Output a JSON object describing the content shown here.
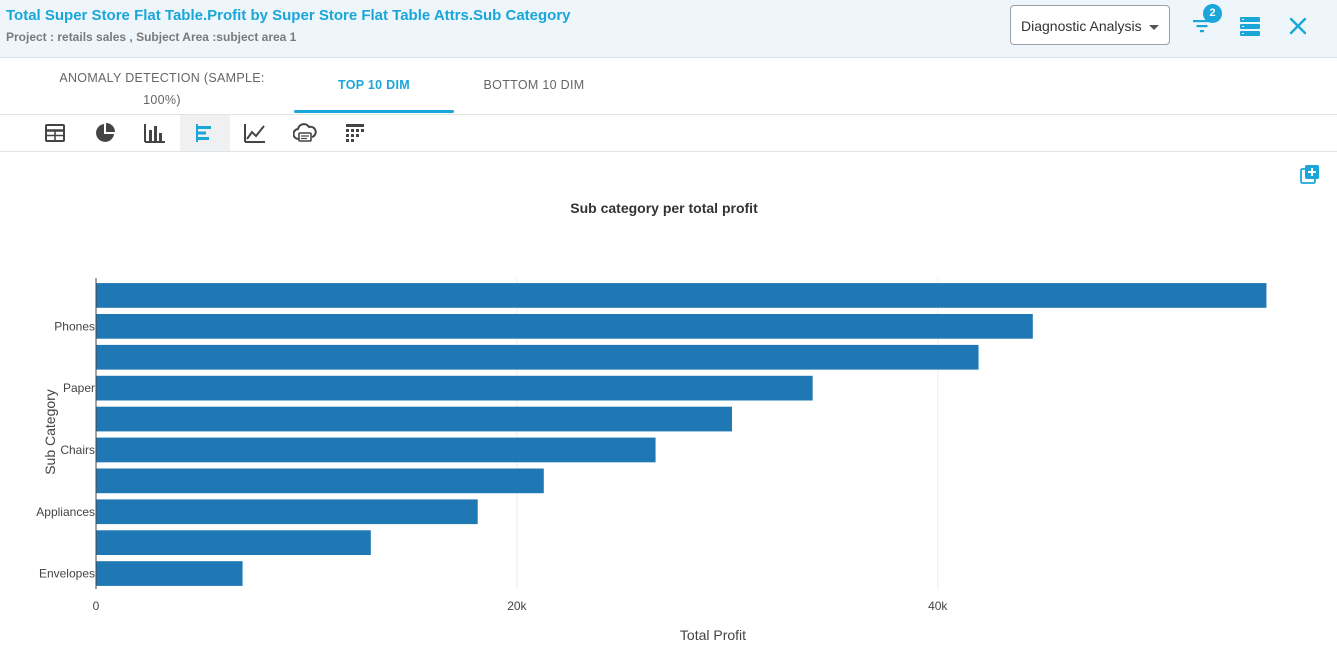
{
  "header": {
    "title": "Total Super Store Flat Table.Profit by Super Store Flat Table Attrs.Sub Category",
    "subtitle": "Project : retails sales ,  Subject Area :subject area 1",
    "dropdown_value": "Diagnostic Analysis",
    "filter_count": "2",
    "icons": [
      "filter-icon",
      "list-view-icon",
      "close-icon"
    ]
  },
  "tabs": [
    {
      "label": "ANOMALY DETECTION (SAMPLE: 100%)",
      "active": false
    },
    {
      "label": "TOP 10 DIM",
      "active": true
    },
    {
      "label": "BOTTOM 10 DIM",
      "active": false
    }
  ],
  "toolbar": {
    "icons": [
      "table-icon",
      "pie-chart-icon",
      "bar-chart-icon",
      "horizontal-bar-chart-icon",
      "line-chart-icon",
      "word-cloud-icon",
      "heatmap-icon"
    ],
    "active": "horizontal-bar-chart-icon"
  },
  "colors": {
    "accent": "#1aa6d9",
    "bar": "#1f77b4"
  },
  "chart_data": {
    "type": "bar",
    "orientation": "horizontal",
    "title": "Sub category per total profit",
    "xlabel": "Total Profit",
    "ylabel": "Sub Category",
    "xlim": [
      0,
      56500
    ],
    "x_ticks": [
      {
        "value": 0,
        "label": "0"
      },
      {
        "value": 20000,
        "label": "20k"
      },
      {
        "value": 40000,
        "label": "40k"
      }
    ],
    "categories": [
      "",
      "Phones",
      "",
      "Paper",
      "",
      "Chairs",
      "",
      "Appliances",
      "",
      "Envelopes"
    ],
    "values": [
      55618,
      44516,
      41937,
      34054,
      30222,
      26590,
      21278,
      18138,
      13059,
      6964
    ],
    "grid": true,
    "legend": "none"
  }
}
